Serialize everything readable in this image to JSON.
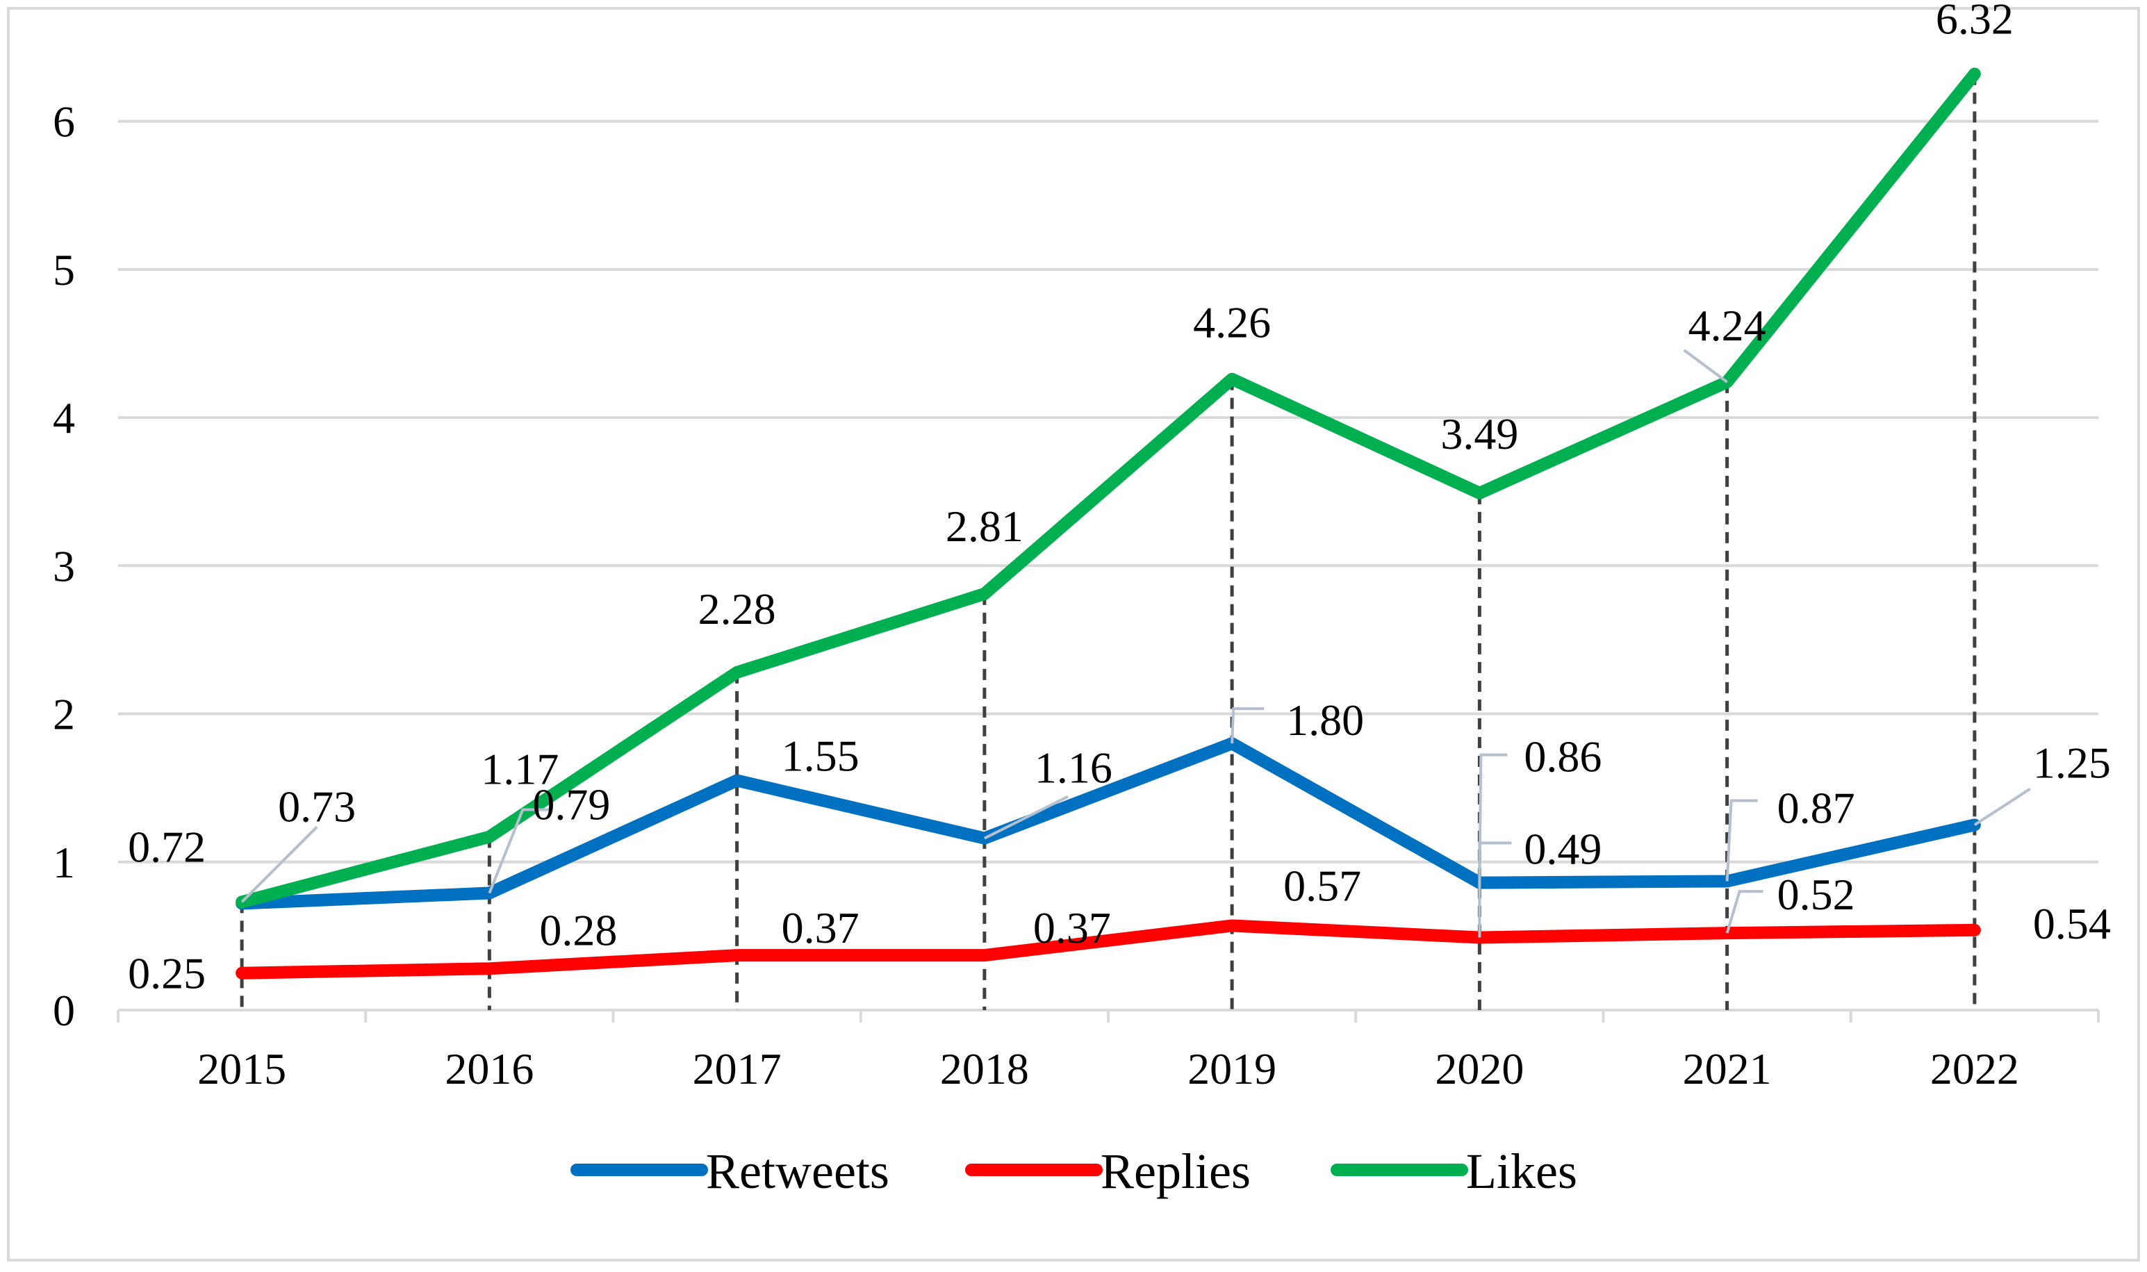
{
  "chart_data": {
    "type": "line",
    "title": "",
    "xlabel": "",
    "ylabel": "",
    "categories": [
      "2015",
      "2016",
      "2017",
      "2018",
      "2019",
      "2020",
      "2021",
      "2022"
    ],
    "ylim": [
      0,
      6.5
    ],
    "yticks": [
      "0",
      "1",
      "2",
      "3",
      "4",
      "5",
      "6"
    ],
    "grid": true,
    "drop_lines": true,
    "legend_position": "bottom",
    "series": [
      {
        "name": "Retweets",
        "color": "#0070C0",
        "values": [
          0.72,
          0.79,
          1.55,
          1.16,
          1.8,
          0.86,
          0.87,
          1.25
        ],
        "labels": [
          "0.72",
          "0.79",
          "1.55",
          "1.16",
          "1.80",
          "0.86",
          "0.87",
          "1.25"
        ]
      },
      {
        "name": "Replies",
        "color": "#FF0000",
        "values": [
          0.25,
          0.28,
          0.37,
          0.37,
          0.57,
          0.49,
          0.52,
          0.54
        ],
        "labels": [
          "0.25",
          "0.28",
          "0.37",
          "0.37",
          "0.57",
          "0.49",
          "0.52",
          "0.54"
        ]
      },
      {
        "name": "Likes",
        "color": "#00B050",
        "values": [
          0.73,
          1.17,
          2.28,
          2.81,
          4.26,
          3.49,
          4.24,
          6.32
        ],
        "labels": [
          "0.73",
          "1.17",
          "2.28",
          "2.81",
          "4.26",
          "3.49",
          "4.24",
          "6.32"
        ]
      }
    ]
  }
}
